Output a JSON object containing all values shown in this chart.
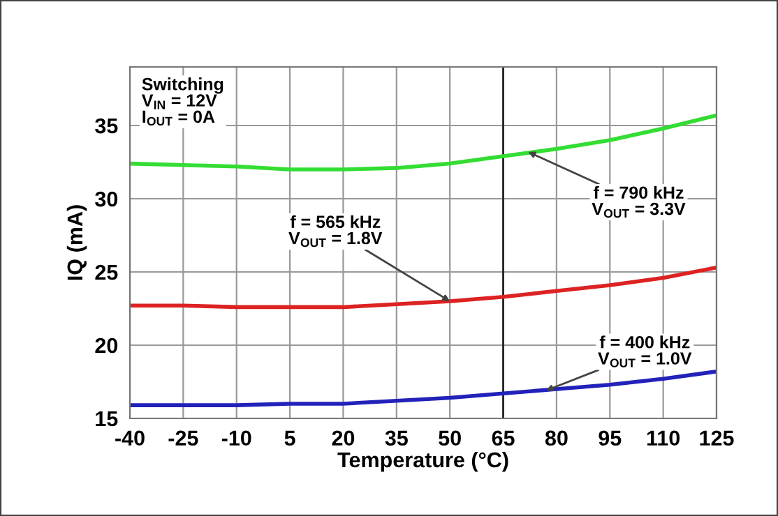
{
  "chart_data": {
    "type": "line",
    "xlabel": "Temperature (°C)",
    "ylabel": "IQ (mA)",
    "x": [
      -40,
      -25,
      -10,
      5,
      20,
      35,
      50,
      65,
      80,
      95,
      110,
      125
    ],
    "series": [
      {
        "color": "#33dd33",
        "values": [
          32.4,
          32.3,
          32.2,
          32.0,
          32.0,
          32.1,
          32.4,
          32.9,
          33.4,
          34.0,
          34.8,
          35.7
        ]
      },
      {
        "color": "#dd2222",
        "values": [
          22.7,
          22.7,
          22.6,
          22.6,
          22.6,
          22.8,
          23.0,
          23.3,
          23.7,
          24.1,
          24.6,
          25.3
        ]
      },
      {
        "color": "#2222bb",
        "values": [
          15.9,
          15.9,
          15.9,
          16.0,
          16.0,
          16.2,
          16.4,
          16.7,
          17.0,
          17.3,
          17.7,
          18.2
        ]
      }
    ],
    "xlim": [
      -40,
      125
    ],
    "ylim": [
      15,
      39
    ],
    "xticks": [
      -40,
      -25,
      -10,
      5,
      20,
      35,
      50,
      65,
      80,
      95,
      110,
      125
    ],
    "yticks": [
      15,
      20,
      25,
      30,
      35
    ],
    "grid": true,
    "marker": "none",
    "line_style": "solid",
    "ref_lines": [
      {
        "axis": "x",
        "value": 65,
        "label": null,
        "color": "#222222"
      }
    ],
    "annotations": [
      "Switching\nV$_{IN}$ = 12V\nI$_{OUT}$ = 0A",
      {
        "text": "f = 790 kHz\nV$_{OUT}$ = 3.3V",
        "x": 72,
        "y": 33.2
      },
      {
        "text": "f = 565 kHz\nV$_{OUT}$ = 1.8V",
        "x": 50,
        "y": 23.0
      },
      {
        "text": "f = 400 kHz\nV$_{OUT}$ = 1.0V",
        "x": 77,
        "y": 16.9
      }
    ]
  }
}
